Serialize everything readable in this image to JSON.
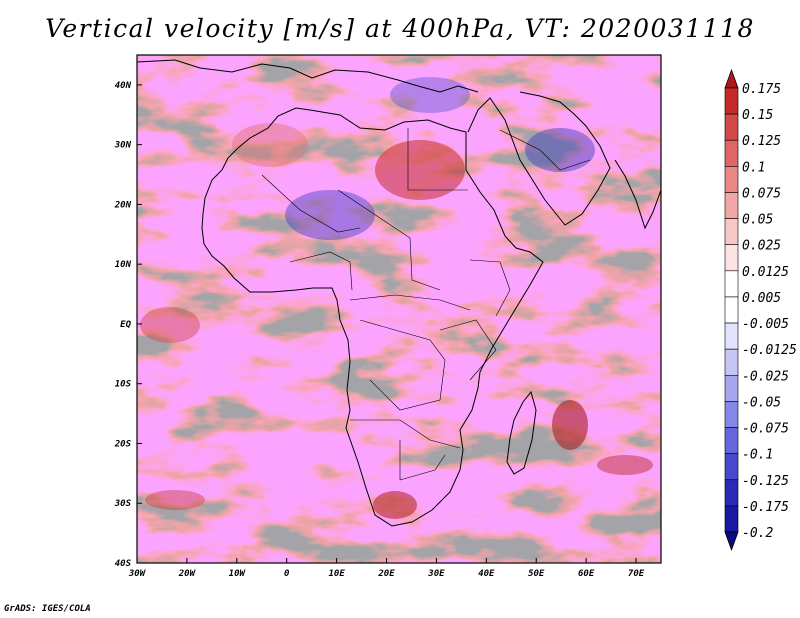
{
  "title": "Vertical velocity [m/s] at 400hPa, VT: 2020031118",
  "credit": "GrADS: IGES/COLA",
  "map": {
    "lon_range": [
      -30,
      75
    ],
    "lat_range": [
      -40,
      45
    ],
    "lat_ticks": [
      {
        "value": 40,
        "label": "40N"
      },
      {
        "value": 30,
        "label": "30N"
      },
      {
        "value": 20,
        "label": "20N"
      },
      {
        "value": 10,
        "label": "10N"
      },
      {
        "value": 0,
        "label": "EQ"
      },
      {
        "value": -10,
        "label": "10S"
      },
      {
        "value": -20,
        "label": "20S"
      },
      {
        "value": -30,
        "label": "30S"
      },
      {
        "value": -40,
        "label": "40S"
      }
    ],
    "lon_ticks": [
      {
        "value": -30,
        "label": "30W"
      },
      {
        "value": -20,
        "label": "20W"
      },
      {
        "value": -10,
        "label": "10W"
      },
      {
        "value": 0,
        "label": "0"
      },
      {
        "value": 10,
        "label": "10E"
      },
      {
        "value": 20,
        "label": "20E"
      },
      {
        "value": 30,
        "label": "30E"
      },
      {
        "value": 40,
        "label": "40E"
      },
      {
        "value": 50,
        "label": "50E"
      },
      {
        "value": 60,
        "label": "60E"
      },
      {
        "value": 70,
        "label": "70E"
      }
    ]
  },
  "colorbar": {
    "labels": [
      "0.175",
      "0.15",
      "0.125",
      "0.1",
      "0.075",
      "0.05",
      "0.025",
      "0.0125",
      "0.005",
      "-0.005",
      "-0.0125",
      "-0.025",
      "-0.05",
      "-0.075",
      "-0.1",
      "-0.125",
      "-0.175",
      "-0.2"
    ],
    "colors": [
      "#b01818",
      "#c42a2a",
      "#d44848",
      "#e06666",
      "#ea8686",
      "#f2a6a6",
      "#f8c6c6",
      "#fce2e2",
      "#ffffff",
      "#ffffff",
      "#e2e2fc",
      "#c6c6f6",
      "#a6a6f0",
      "#8686e8",
      "#6666dc",
      "#4848cc",
      "#2a2ab8",
      "#1818a0",
      "#0c0c80"
    ]
  }
}
